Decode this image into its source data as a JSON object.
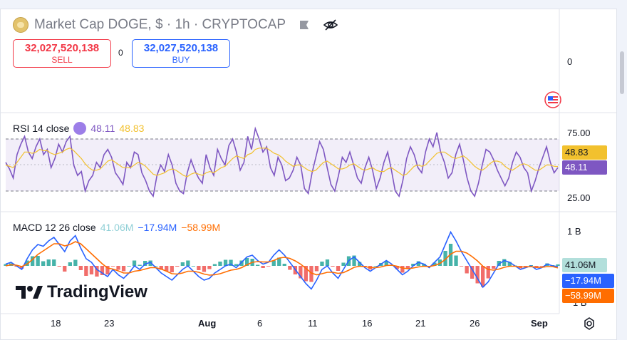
{
  "header": {
    "title": "Market Cap DOGE, $ · 1h · CRYPTOCAP",
    "icons": [
      "doge-coin-icon",
      "flag-icon",
      "eye-slash-icon"
    ]
  },
  "trade": {
    "sell_price": "32,027,520,138",
    "sell_label": "SELL",
    "spread": "0",
    "buy_price": "32,027,520,138",
    "buy_label": "BUY"
  },
  "main_pane": {
    "axis_label": "0",
    "ylabel_icon": "currency-flag-icon"
  },
  "rsi": {
    "label": "RSI 14 close",
    "rsi_value": "48.11",
    "ma_value": "48.83",
    "ticks": [
      "75.00",
      "25.00"
    ],
    "tag_ma": "48.83",
    "tag_rsi": "48.11"
  },
  "macd": {
    "label": "MACD 12 26 close",
    "hist_value": "41.06M",
    "macd_value": "−17.94M",
    "signal_value": "−58.99M",
    "tick_top": "1 B",
    "tick_bottom": "1 B",
    "tag_hist": "41.06M",
    "tag_macd": "−17.94M",
    "tag_signal": "−58.99M"
  },
  "xaxis": {
    "labels": [
      "18",
      "23",
      "Aug",
      "6",
      "11",
      "16",
      "21",
      "26",
      "Sep"
    ]
  },
  "branding": {
    "logo_text": "TradingView"
  },
  "colors": {
    "rsi_line": "#7e57c2",
    "rsi_ma": "#f2c12e",
    "macd_line": "#2962ff",
    "signal_line": "#ff6d00",
    "hist_pos": "#26a69a",
    "hist_neg": "#ef5350",
    "sell": "#f23645",
    "buy": "#2962ff"
  },
  "chart_data": [
    {
      "type": "line",
      "title": "RSI 14 close",
      "ylim": [
        15,
        85
      ],
      "reference_lines": [
        70,
        50,
        30
      ],
      "series": [
        {
          "name": "RSI",
          "values": [
            52,
            47,
            40,
            58,
            66,
            72,
            60,
            55,
            64,
            70,
            58,
            62,
            48,
            55,
            66,
            60,
            68,
            72,
            50,
            42,
            45,
            30,
            38,
            42,
            52,
            48,
            58,
            62,
            56,
            44,
            40,
            35,
            52,
            48,
            60,
            58,
            44,
            38,
            30,
            26,
            42,
            50,
            45,
            58,
            50,
            36,
            30,
            28,
            44,
            54,
            46,
            40,
            36,
            58,
            48,
            42,
            62,
            55,
            50,
            65,
            70,
            60,
            46,
            52,
            72,
            62,
            78,
            70,
            60,
            64,
            48,
            42,
            56,
            50,
            38,
            40,
            46,
            56,
            50,
            32,
            28,
            44,
            56,
            68,
            62,
            48,
            35,
            30,
            42,
            56,
            52,
            60,
            50,
            40,
            36,
            48,
            56,
            46,
            32,
            40,
            52,
            60,
            46,
            30,
            26,
            38,
            55,
            64,
            58,
            48,
            44,
            60,
            70,
            64,
            75,
            60,
            52,
            40,
            44,
            58,
            66,
            54,
            40,
            30,
            26,
            36,
            50,
            62,
            60,
            54,
            46,
            40,
            34,
            40,
            52,
            60,
            56,
            48,
            44,
            30,
            38,
            48,
            56,
            64,
            52,
            44,
            48
          ]
        },
        {
          "name": "RSI MA",
          "values": [
            50,
            49,
            48,
            52,
            56,
            60,
            60,
            59,
            60,
            62,
            61,
            61,
            59,
            58,
            59,
            60,
            62,
            63,
            61,
            58,
            55,
            51,
            48,
            46,
            46,
            47,
            50,
            53,
            54,
            52,
            50,
            48,
            48,
            48,
            50,
            52,
            51,
            49,
            46,
            43,
            42,
            43,
            44,
            46,
            47,
            46,
            44,
            42,
            41,
            43,
            44,
            43,
            42,
            44,
            45,
            44,
            46,
            48,
            49,
            52,
            55,
            57,
            56,
            55,
            58,
            59,
            62,
            63,
            63,
            63,
            61,
            59,
            58,
            56,
            53,
            51,
            49,
            50,
            50,
            48,
            46,
            45,
            46,
            49,
            52,
            53,
            51,
            49,
            47,
            47,
            48,
            50,
            51,
            49,
            47,
            46,
            47,
            48,
            46,
            45,
            45,
            47,
            48,
            46,
            44,
            42,
            43,
            46,
            49,
            50,
            49,
            50,
            53,
            56,
            59,
            60,
            60,
            58,
            56,
            55,
            56,
            57,
            55,
            52,
            49,
            47,
            46,
            48,
            51,
            53,
            53,
            52,
            49,
            47,
            46,
            48,
            50,
            51,
            50,
            48,
            46,
            46,
            48,
            50,
            50,
            49,
            48.83
          ]
        }
      ]
    },
    {
      "type": "line",
      "title": "MACD 12 26 close",
      "series": [
        {
          "name": "MACD",
          "values": [
            0.05,
            0.1,
            0.0,
            -0.1,
            0.2,
            0.45,
            0.6,
            0.55,
            0.7,
            0.8,
            0.6,
            0.4,
            0.7,
            0.85,
            0.5,
            0.2,
            0.1,
            -0.1,
            -0.2,
            -0.3,
            -0.1,
            -0.25,
            -0.35,
            -0.2,
            0.0,
            -0.1,
            0.05,
            0.1,
            -0.05,
            -0.2,
            -0.3,
            -0.4,
            -0.25,
            -0.1,
            0.0,
            -0.15,
            -0.3,
            -0.4,
            -0.35,
            -0.2,
            -0.1,
            0.0,
            0.05,
            -0.05,
            0.1,
            0.25,
            0.3,
            0.15,
            0.05,
            0.1,
            0.3,
            0.45,
            0.3,
            0.1,
            -0.1,
            -0.3,
            -0.5,
            -0.65,
            -0.4,
            -0.1,
            0.0,
            -0.2,
            -0.35,
            -0.1,
            0.15,
            0.25,
            0.1,
            -0.05,
            -0.15,
            -0.05,
            0.05,
            0.15,
            0.05,
            -0.1,
            -0.25,
            -0.15,
            0.0,
            0.1,
            0.05,
            -0.05,
            0.1,
            0.25,
            0.6,
            0.95,
            0.7,
            0.4,
            0.15,
            -0.1,
            -0.35,
            -0.6,
            -0.45,
            -0.2,
            0.05,
            0.15,
            0.1,
            0.0,
            -0.1,
            -0.05,
            0.0,
            -0.1,
            -0.05,
            0.05,
            0.0,
            -0.0179
          ]
        },
        {
          "name": "Signal",
          "values": [
            0.0,
            0.03,
            0.02,
            -0.02,
            0.05,
            0.18,
            0.32,
            0.42,
            0.52,
            0.62,
            0.62,
            0.56,
            0.6,
            0.68,
            0.62,
            0.48,
            0.34,
            0.2,
            0.06,
            -0.06,
            -0.09,
            -0.14,
            -0.2,
            -0.2,
            -0.15,
            -0.13,
            -0.09,
            -0.05,
            -0.05,
            -0.09,
            -0.15,
            -0.22,
            -0.23,
            -0.2,
            -0.15,
            -0.15,
            -0.18,
            -0.23,
            -0.26,
            -0.25,
            -0.22,
            -0.17,
            -0.12,
            -0.1,
            -0.05,
            0.03,
            0.1,
            0.12,
            0.11,
            0.11,
            0.15,
            0.22,
            0.24,
            0.21,
            0.14,
            0.05,
            -0.07,
            -0.2,
            -0.25,
            -0.22,
            -0.18,
            -0.18,
            -0.21,
            -0.19,
            -0.12,
            -0.04,
            -0.01,
            -0.02,
            -0.05,
            -0.05,
            -0.03,
            0.01,
            0.02,
            -0.01,
            -0.06,
            -0.08,
            -0.06,
            -0.03,
            -0.01,
            -0.02,
            0.01,
            0.07,
            0.18,
            0.33,
            0.41,
            0.41,
            0.36,
            0.26,
            0.14,
            -0.01,
            -0.1,
            -0.12,
            -0.09,
            -0.04,
            -0.01,
            -0.01,
            -0.03,
            -0.03,
            -0.02,
            -0.04,
            -0.04,
            -0.02,
            -0.02,
            -0.05899
          ]
        }
      ]
    }
  ]
}
